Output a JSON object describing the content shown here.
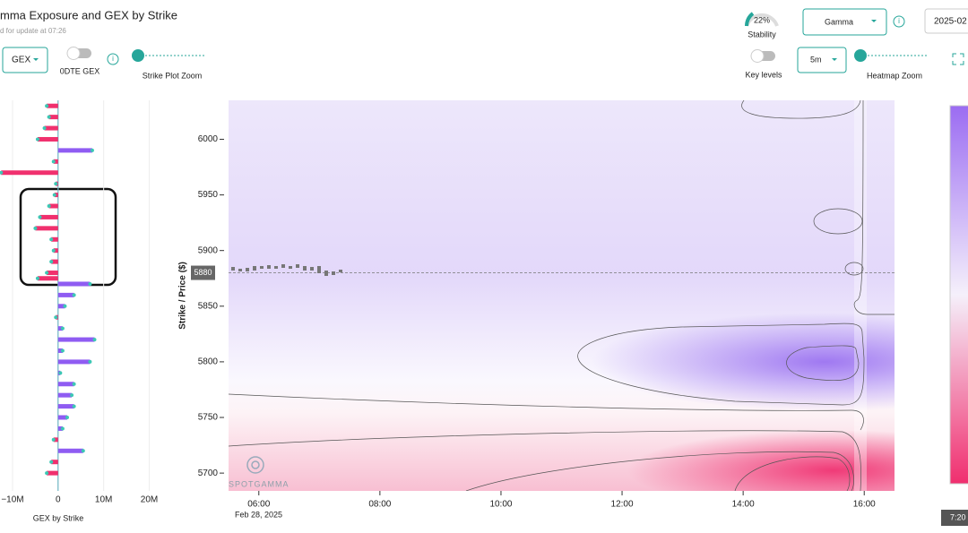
{
  "header": {
    "title": "mma Exposure and GEX by Strike",
    "subtitle": "d for update at 07:26"
  },
  "controls": {
    "gex_select": "GEX",
    "dte_toggle": "0DTE GEX",
    "strike_zoom": "Strike Plot Zoom",
    "stability_value": "22%",
    "stability_label": "Stability",
    "metric_select": "Gamma",
    "date_field": "2025-02",
    "key_levels": "Key levels",
    "interval_select": "5m",
    "heatmap_zoom": "Heatmap Zoom"
  },
  "gex_chart": {
    "type": "bar",
    "orientation": "horizontal",
    "x_label": "GEX by Strike",
    "strikes": [
      6030,
      6020,
      6010,
      6000,
      5990,
      5980,
      5970,
      5960,
      5950,
      5940,
      5930,
      5920,
      5910,
      5900,
      5890,
      5880,
      5875,
      5870,
      5860,
      5850,
      5840,
      5830,
      5820,
      5810,
      5800,
      5790,
      5780,
      5770,
      5760,
      5750,
      5740,
      5730,
      5720,
      5710,
      5700
    ],
    "values": [
      -2500000,
      -2000000,
      -3000000,
      -4500000,
      7500000,
      -1000000,
      -12500000,
      -500000,
      -800000,
      -2000000,
      -4000000,
      -5000000,
      -1500000,
      -1000000,
      -1500000,
      -2500000,
      -4500000,
      7000000,
      3500000,
      1500000,
      -500000,
      1000000,
      8000000,
      1000000,
      7000000,
      500000,
      3500000,
      3000000,
      3500000,
      2000000,
      1000000,
      -1000000,
      5500000,
      -1500000,
      -2500000
    ],
    "positive_color": "#8f5cf2",
    "negative_color": "#f0306e",
    "xlim": [
      -12750000,
      26000000
    ],
    "xticks": [
      {
        "value": -10000000,
        "label": "−10M"
      },
      0,
      {
        "value": 10000000,
        "label": "10M"
      },
      {
        "value": 20000000,
        "label": "20M"
      }
    ],
    "ylim": [
      5684,
      6035
    ]
  },
  "heatmap": {
    "type": "heatmap",
    "y_label": "Strike / Price ($)",
    "date_label": "Feb 28, 2025",
    "xlim": [
      5.5,
      16.5
    ],
    "xticks": [
      {
        "value": 6,
        "label": "06:00"
      },
      {
        "value": 8,
        "label": "08:00"
      },
      {
        "value": 10,
        "label": "10:00"
      },
      {
        "value": 12,
        "label": "12:00"
      },
      {
        "value": 14,
        "label": "14:00"
      },
      {
        "value": 16,
        "label": "16:00"
      }
    ],
    "ylim": [
      5684,
      6035
    ],
    "yticks": [
      5700,
      5750,
      5800,
      5850,
      5900,
      5950,
      6000
    ],
    "price": 5880,
    "watermark": "SPOTGAMMA",
    "time_badge": "7:20"
  }
}
